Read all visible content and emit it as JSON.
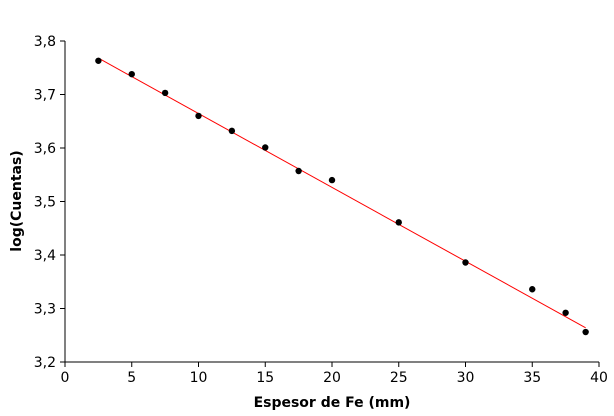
{
  "chart_data": {
    "type": "scatter",
    "title": "",
    "xlabel": "Espesor de Fe (mm)",
    "ylabel": "log(Cuentas)",
    "xlim": [
      0,
      40
    ],
    "ylim": [
      3.2,
      3.8
    ],
    "x_ticks": [
      0,
      5,
      10,
      15,
      20,
      25,
      30,
      35,
      40
    ],
    "x_tick_labels": [
      "0",
      "5",
      "10",
      "15",
      "20",
      "25",
      "30",
      "35",
      "40"
    ],
    "y_ticks": [
      3.2,
      3.3,
      3.4,
      3.5,
      3.6,
      3.7,
      3.8
    ],
    "y_tick_labels": [
      "3,2",
      "3,3",
      "3,4",
      "3,5",
      "3,6",
      "3,7",
      "3,8"
    ],
    "grid": false,
    "legend": false,
    "series": [
      {
        "type": "scatter",
        "color": "#000000",
        "points": [
          {
            "x": 2.5,
            "y": 3.763
          },
          {
            "x": 5,
            "y": 3.738
          },
          {
            "x": 7.5,
            "y": 3.703
          },
          {
            "x": 10,
            "y": 3.66
          },
          {
            "x": 12.5,
            "y": 3.632
          },
          {
            "x": 15,
            "y": 3.601
          },
          {
            "x": 17.5,
            "y": 3.557
          },
          {
            "x": 20,
            "y": 3.54
          },
          {
            "x": 25,
            "y": 3.461
          },
          {
            "x": 30,
            "y": 3.386
          },
          {
            "x": 35,
            "y": 3.336
          },
          {
            "x": 37.5,
            "y": 3.292
          },
          {
            "x": 39,
            "y": 3.256
          }
        ]
      },
      {
        "type": "line",
        "color": "#ff0000",
        "points": [
          {
            "x": 2.5,
            "y": 3.768
          },
          {
            "x": 39,
            "y": 3.264
          }
        ]
      }
    ]
  }
}
